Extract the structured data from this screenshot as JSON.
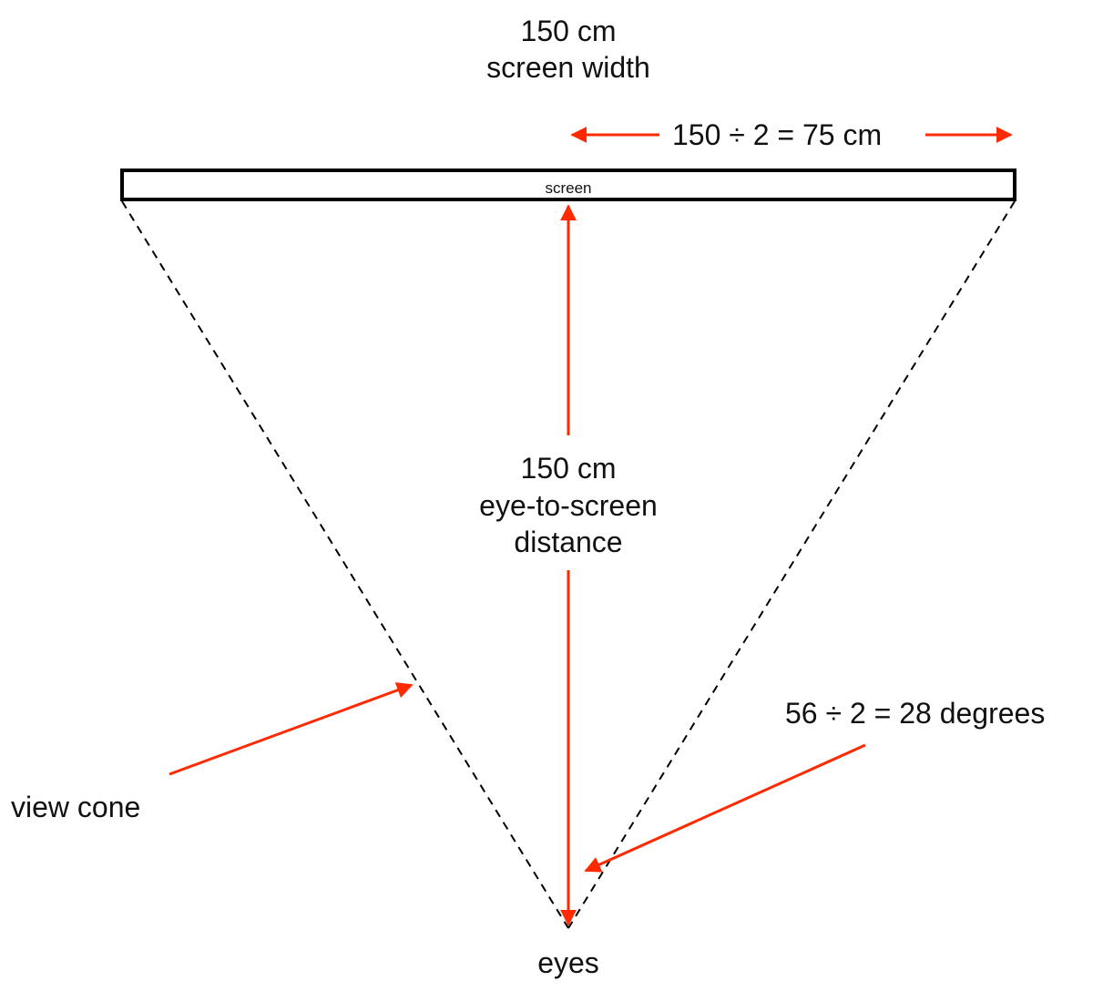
{
  "labels": {
    "screen_width_value": "150 cm",
    "screen_width_caption": "screen width",
    "half_width": "150 ÷ 2 = 75 cm",
    "screen": "screen",
    "distance_value": "150 cm",
    "distance_caption_1": "eye-to-screen",
    "distance_caption_2": "distance",
    "half_angle": "56 ÷ 2 = 28 degrees",
    "view_cone": "view cone",
    "eyes": "eyes"
  },
  "colors": {
    "arrow": "#ff2a00",
    "line": "#000000",
    "text": "#111111"
  }
}
